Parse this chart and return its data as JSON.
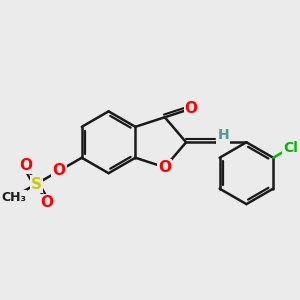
{
  "bg_color": "#ebebeb",
  "bond_color": "#1a1a1a",
  "bond_width": 1.8,
  "atom_colors": {
    "O": "#ff0000",
    "S": "#cccc00",
    "Cl": "#00bb00",
    "H": "#4a9a9a",
    "C": "#1a1a1a"
  },
  "font_size_atom": 11,
  "font_size_small": 9,
  "xlim": [
    0.0,
    9.0
  ],
  "ylim": [
    1.0,
    8.5
  ]
}
